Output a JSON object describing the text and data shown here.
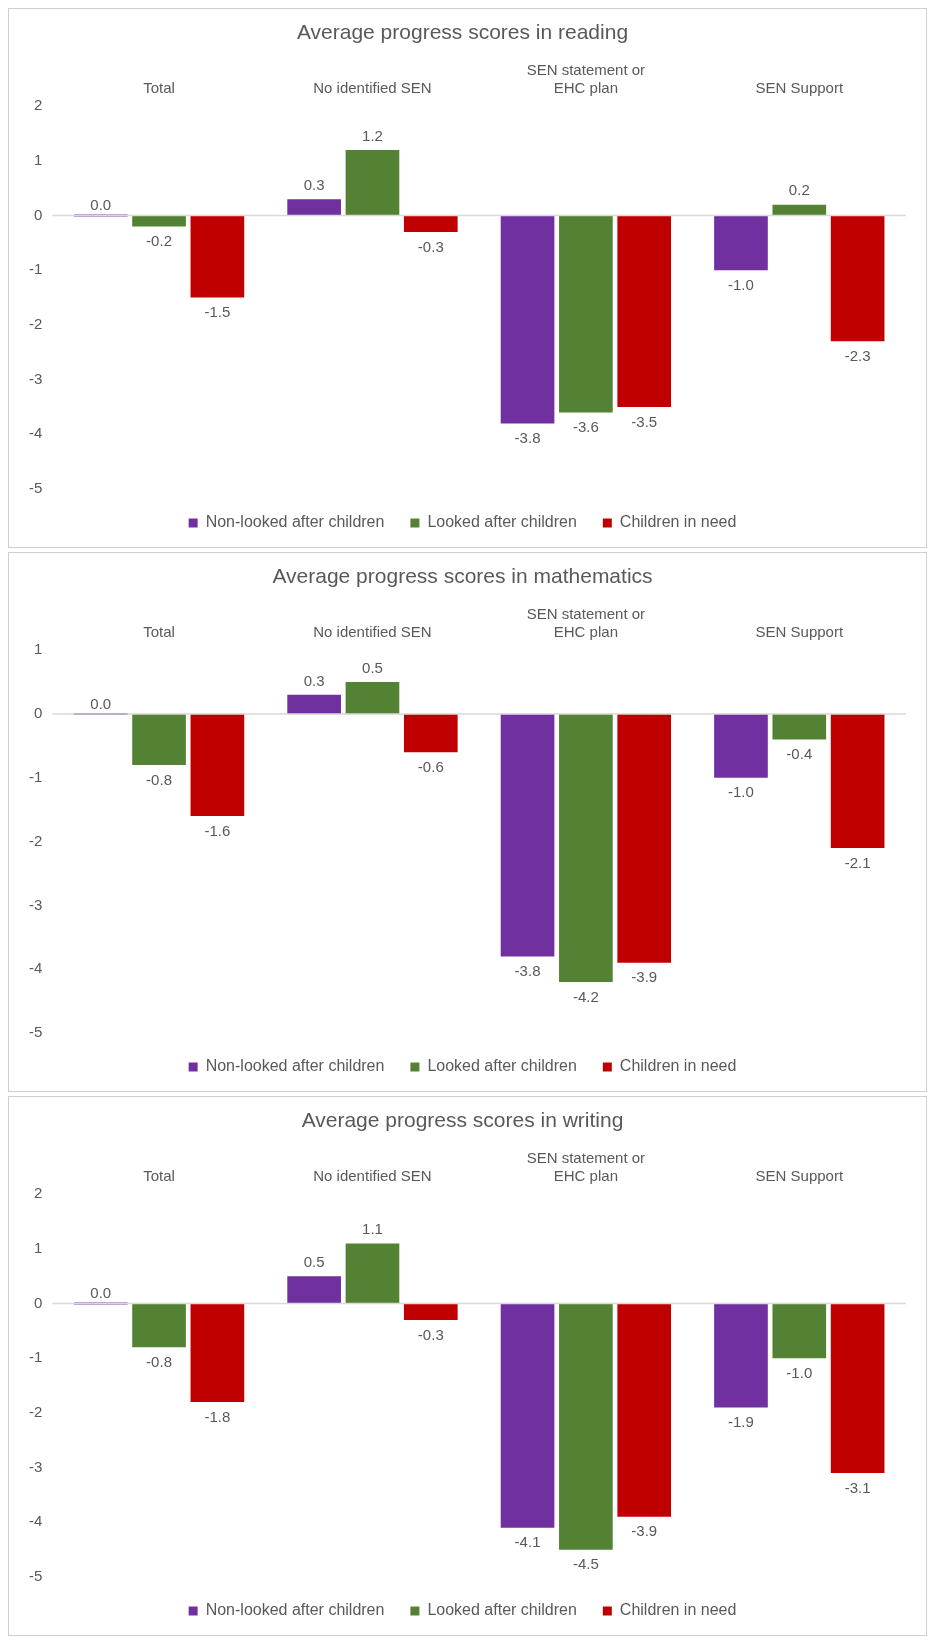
{
  "chart_data": [
    {
      "type": "bar",
      "title": "Average progress scores in reading",
      "categories": [
        "Total",
        "No identified SEN",
        "SEN statement or EHC plan",
        "SEN Support"
      ],
      "series": [
        {
          "name": "Non-looked after children",
          "color": "#7030a0",
          "values": [
            0.0,
            0.3,
            -3.8,
            -1.0
          ],
          "value_labels": [
            "0.0",
            "0.3",
            "-3.8",
            "-1.0"
          ]
        },
        {
          "name": "Looked after children",
          "color": "#548235",
          "values": [
            -0.2,
            1.2,
            -3.6,
            0.2
          ],
          "value_labels": [
            "-0.2",
            "1.2",
            "-3.6",
            "0.2"
          ]
        },
        {
          "name": "Children in need",
          "color": "#c00000",
          "values": [
            -1.5,
            -0.3,
            -3.5,
            -2.3
          ],
          "value_labels": [
            "-1.5",
            "-0.3",
            "-3.5",
            "-2.3"
          ]
        }
      ],
      "ylim": [
        -5,
        2
      ],
      "yticks": [
        -5,
        -4,
        -3,
        -2,
        -1,
        0,
        1,
        2
      ],
      "grid": false,
      "legend": "bottom",
      "ref_lines": [
        {
          "axis": "y",
          "value": 0,
          "color": "#d9d9d9"
        }
      ]
    },
    {
      "type": "bar",
      "title": "Average progress scores in mathematics",
      "categories": [
        "Total",
        "No identified SEN",
        "SEN statement or EHC plan",
        "SEN Support"
      ],
      "series": [
        {
          "name": "Non-looked after children",
          "color": "#7030a0",
          "values": [
            0.0,
            0.3,
            -3.8,
            -1.0
          ],
          "value_labels": [
            "0.0",
            "0.3",
            "-3.8",
            "-1.0"
          ]
        },
        {
          "name": "Looked after children",
          "color": "#548235",
          "values": [
            -0.8,
            0.5,
            -4.2,
            -0.4
          ],
          "value_labels": [
            "-0.8",
            "0.5",
            "-4.2",
            "-0.4"
          ]
        },
        {
          "name": "Children in need",
          "color": "#c00000",
          "values": [
            -1.6,
            -0.6,
            -3.9,
            -2.1
          ],
          "value_labels": [
            "-1.6",
            "-0.6",
            "-3.9",
            "-2.1"
          ]
        }
      ],
      "ylim": [
        -5,
        1
      ],
      "yticks": [
        -5,
        -4,
        -3,
        -2,
        -1,
        0,
        1
      ],
      "grid": false,
      "legend": "bottom",
      "ref_lines": [
        {
          "axis": "y",
          "value": 0,
          "color": "#d9d9d9"
        }
      ]
    },
    {
      "type": "bar",
      "title": "Average progress scores in writing",
      "categories": [
        "Total",
        "No identified SEN",
        "SEN statement or EHC plan",
        "SEN Support"
      ],
      "series": [
        {
          "name": "Non-looked after children",
          "color": "#7030a0",
          "values": [
            0.0,
            0.5,
            -4.1,
            -1.9
          ],
          "value_labels": [
            "0.0",
            "0.5",
            "-4.1",
            "-1.9"
          ]
        },
        {
          "name": "Looked after children",
          "color": "#548235",
          "values": [
            -0.8,
            1.1,
            -4.5,
            -1.0
          ],
          "value_labels": [
            "-0.8",
            "1.1",
            "-4.5",
            "-1.0"
          ]
        },
        {
          "name": "Children in need",
          "color": "#c00000",
          "values": [
            -1.8,
            -0.3,
            -3.9,
            -3.1
          ],
          "value_labels": [
            "-1.8",
            "-0.3",
            "-3.9",
            "-3.1"
          ]
        }
      ],
      "ylim": [
        -5,
        2
      ],
      "yticks": [
        -5,
        -4,
        -3,
        -2,
        -1,
        0,
        1,
        2
      ],
      "grid": false,
      "legend": "bottom",
      "ref_lines": [
        {
          "axis": "y",
          "value": 0,
          "color": "#d9d9d9"
        }
      ]
    }
  ]
}
